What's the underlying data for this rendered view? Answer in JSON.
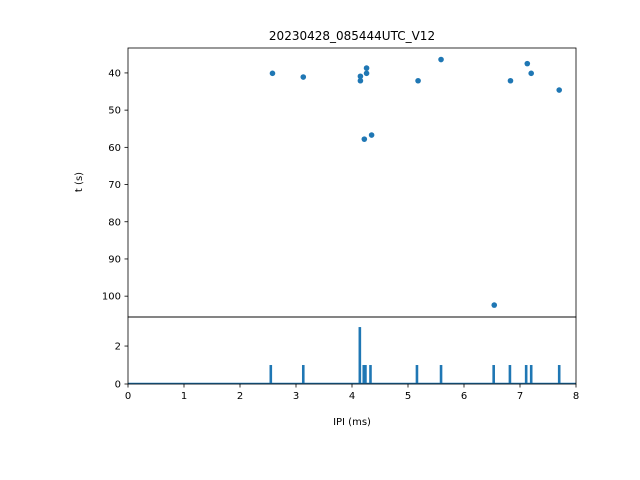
{
  "chart_data": [
    {
      "type": "scatter",
      "title": "20230428_085444UTC_V12",
      "xlabel": "",
      "ylabel": "t (s)",
      "xlim": [
        0,
        8
      ],
      "ylim": [
        105.6,
        33.3
      ],
      "y_inverted": true,
      "yticks": [
        "40",
        "50",
        "60",
        "70",
        "80",
        "90",
        "100"
      ],
      "ytick_values": [
        40,
        50,
        60,
        70,
        80,
        90,
        100
      ],
      "color": "#1f77b4",
      "points": [
        {
          "x": 2.58,
          "y": 40.1
        },
        {
          "x": 3.13,
          "y": 41.1
        },
        {
          "x": 4.15,
          "y": 40.9
        },
        {
          "x": 4.15,
          "y": 42.1
        },
        {
          "x": 4.26,
          "y": 38.7
        },
        {
          "x": 4.26,
          "y": 40.1
        },
        {
          "x": 4.22,
          "y": 57.8
        },
        {
          "x": 4.35,
          "y": 56.7
        },
        {
          "x": 5.18,
          "y": 42.1
        },
        {
          "x": 5.59,
          "y": 36.4
        },
        {
          "x": 6.54,
          "y": 102.4
        },
        {
          "x": 6.83,
          "y": 42.1
        },
        {
          "x": 7.13,
          "y": 37.5
        },
        {
          "x": 7.2,
          "y": 40.1
        },
        {
          "x": 7.7,
          "y": 44.6
        }
      ]
    },
    {
      "type": "bar",
      "title": "",
      "xlabel": "IPI (ms)",
      "ylabel": "",
      "xlim": [
        0,
        8
      ],
      "ylim": [
        0,
        3.53
      ],
      "xticks": [
        "0",
        "1",
        "2",
        "3",
        "4",
        "5",
        "6",
        "7",
        "8"
      ],
      "xtick_values": [
        0,
        1,
        2,
        3,
        4,
        5,
        6,
        7,
        8
      ],
      "yticks": [
        "0",
        "2"
      ],
      "ytick_values": [
        0,
        2
      ],
      "color": "#1f77b4",
      "bins": [
        {
          "x": 2.55,
          "count": 1
        },
        {
          "x": 3.13,
          "count": 1
        },
        {
          "x": 4.14,
          "count": 3
        },
        {
          "x": 4.21,
          "count": 1
        },
        {
          "x": 4.24,
          "count": 1
        },
        {
          "x": 4.33,
          "count": 1
        },
        {
          "x": 5.16,
          "count": 1
        },
        {
          "x": 5.59,
          "count": 1
        },
        {
          "x": 6.53,
          "count": 1
        },
        {
          "x": 6.82,
          "count": 1
        },
        {
          "x": 7.11,
          "count": 1
        },
        {
          "x": 7.2,
          "count": 1
        },
        {
          "x": 7.7,
          "count": 1
        }
      ]
    }
  ]
}
